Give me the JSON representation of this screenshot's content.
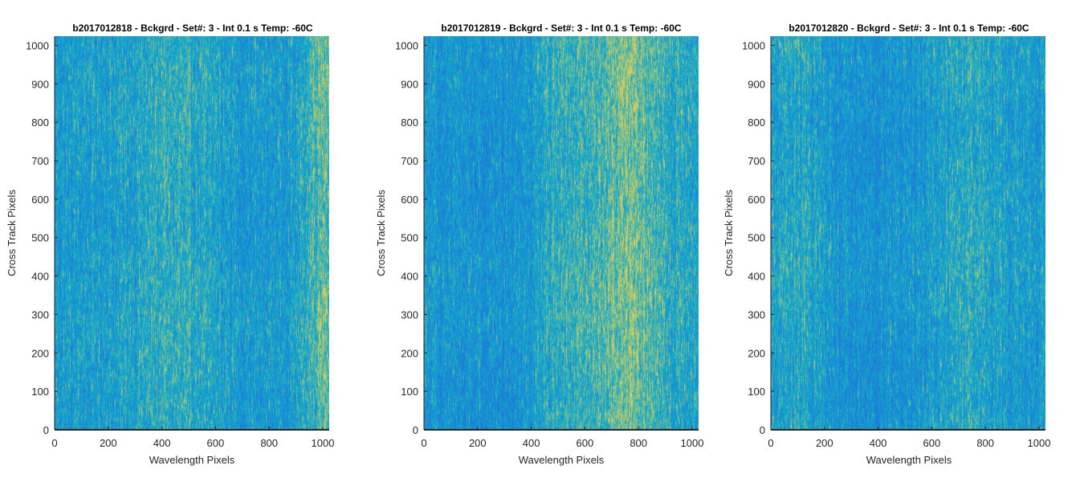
{
  "figure": {
    "colormap_low": "#1f78d8",
    "colormap_mid": "#11aacb",
    "colormap_high": "#d8cf5a",
    "axis_color": "#262626"
  },
  "chart_data": [
    {
      "type": "heatmap",
      "title": "b2017012818 - Bckgrd - Set#: 3 - Int 0.1 s Temp: -60C",
      "xlabel": "Wavelength Pixels",
      "ylabel": "Cross Track Pixels",
      "xlim": [
        0,
        1024
      ],
      "ylim": [
        0,
        1024
      ],
      "xticks": [
        0,
        200,
        400,
        600,
        800,
        1000
      ],
      "yticks": [
        0,
        100,
        200,
        300,
        400,
        500,
        600,
        700,
        800,
        900,
        1000
      ],
      "columns": 1024,
      "rows": 1024,
      "relative_level_by_wavelength": {
        "x": [
          0,
          100,
          200,
          300,
          400,
          500,
          600,
          700,
          800,
          900,
          950,
          1000,
          1024
        ],
        "level": [
          0.35,
          0.38,
          0.4,
          0.44,
          0.52,
          0.5,
          0.42,
          0.35,
          0.34,
          0.4,
          0.55,
          0.75,
          0.7
        ]
      }
    },
    {
      "type": "heatmap",
      "title": "b2017012819 - Bckgrd - Set#: 3 - Int 0.1 s Temp: -60C",
      "xlabel": "Wavelength Pixels",
      "ylabel": "Cross Track Pixels",
      "xlim": [
        0,
        1024
      ],
      "ylim": [
        0,
        1024
      ],
      "xticks": [
        0,
        200,
        400,
        600,
        800,
        1000
      ],
      "yticks": [
        0,
        100,
        200,
        300,
        400,
        500,
        600,
        700,
        800,
        900,
        1000
      ],
      "columns": 1024,
      "rows": 1024,
      "relative_level_by_wavelength": {
        "x": [
          0,
          100,
          200,
          300,
          400,
          450,
          500,
          600,
          700,
          750,
          800,
          900,
          1024
        ],
        "level": [
          0.32,
          0.3,
          0.28,
          0.27,
          0.35,
          0.5,
          0.52,
          0.55,
          0.68,
          0.78,
          0.72,
          0.52,
          0.45
        ]
      }
    },
    {
      "type": "heatmap",
      "title": "b2017012820 - Bckgrd - Set#: 3 - Int 0.1 s Temp: -60C",
      "xlabel": "Wavelength Pixels",
      "ylabel": "Cross Track Pixels",
      "xlim": [
        0,
        1024
      ],
      "ylim": [
        0,
        1024
      ],
      "xticks": [
        0,
        200,
        400,
        600,
        800,
        1000
      ],
      "yticks": [
        0,
        100,
        200,
        300,
        400,
        500,
        600,
        700,
        800,
        900,
        1000
      ],
      "columns": 1024,
      "rows": 1024,
      "relative_level_by_wavelength": {
        "x": [
          0,
          100,
          200,
          300,
          400,
          500,
          600,
          700,
          800,
          900,
          1024
        ],
        "level": [
          0.42,
          0.48,
          0.38,
          0.28,
          0.27,
          0.3,
          0.38,
          0.48,
          0.47,
          0.38,
          0.35
        ]
      }
    }
  ]
}
